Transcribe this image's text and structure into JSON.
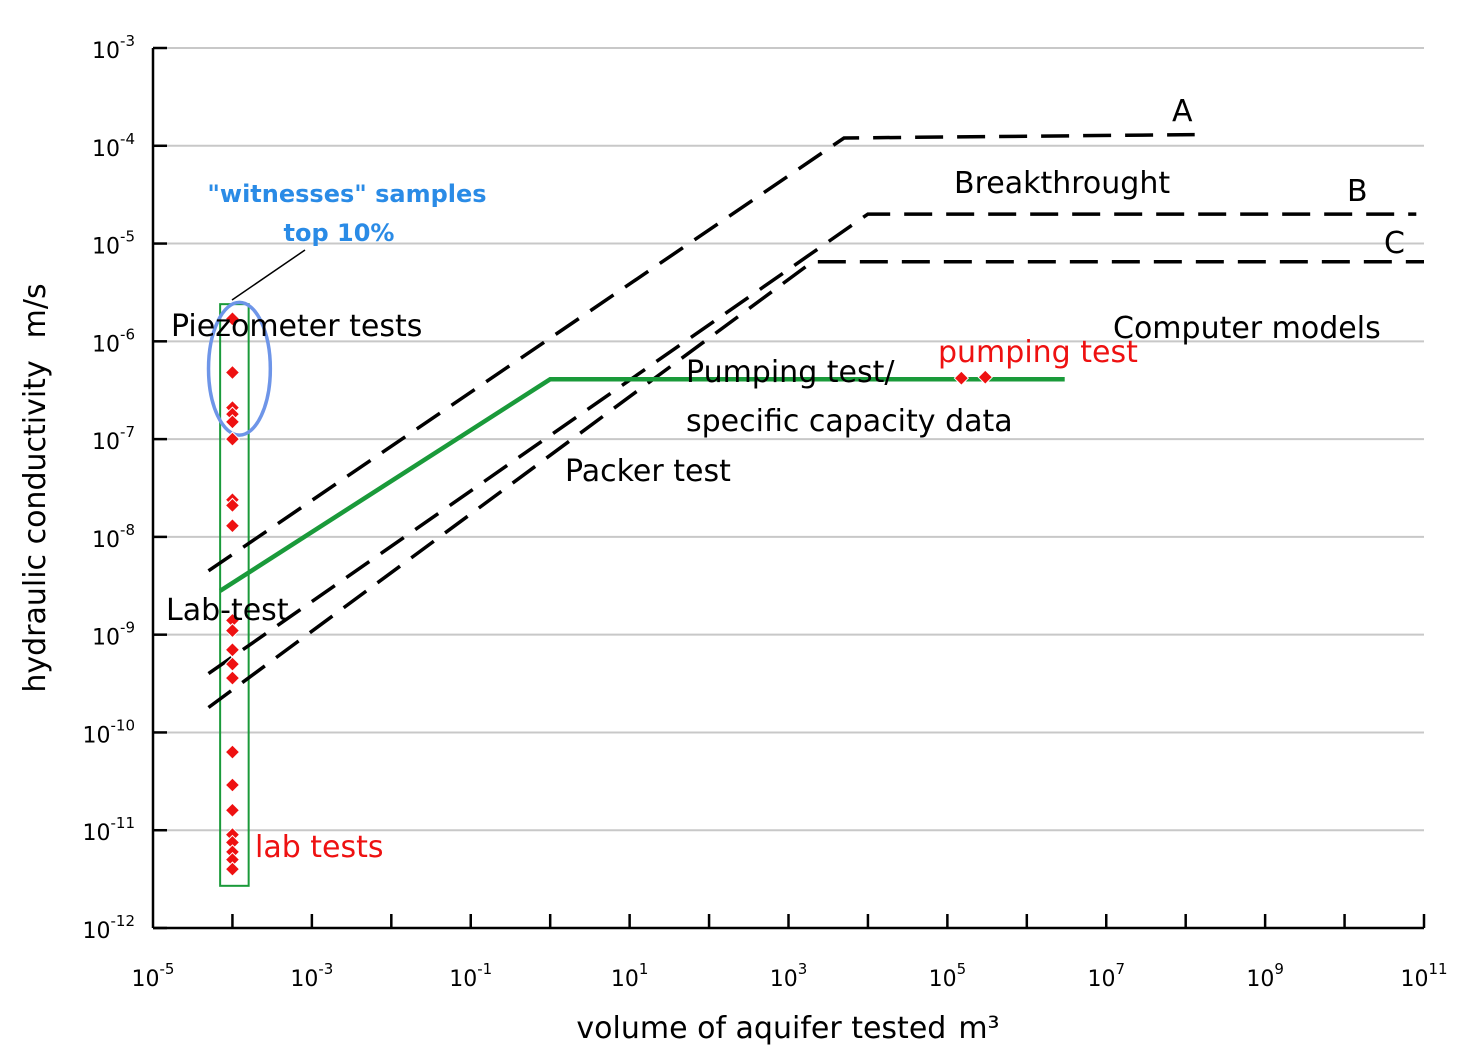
{
  "chart_data": {
    "type": "line",
    "xlabel": "volume of aquifer tested",
    "xlabel_unit": "m³",
    "ylabel": "hydraulic conductivity",
    "ylabel_unit": "m/s",
    "x_scale": "log",
    "y_scale": "log",
    "xlim": [
      1e-05,
      100000000000.0
    ],
    "ylim": [
      1e-12,
      0.001
    ],
    "grid": "horizontal",
    "x_ticks": [
      {
        "base": "10",
        "exp": "-5",
        "value": 1e-05
      },
      {
        "base": "10",
        "exp": "-3",
        "value": 0.001
      },
      {
        "base": "10",
        "exp": "-1",
        "value": 0.1
      },
      {
        "base": "10",
        "exp": "1",
        "value": 10.0
      },
      {
        "base": "10",
        "exp": "3",
        "value": 1000.0
      },
      {
        "base": "10",
        "exp": "5",
        "value": 100000.0
      },
      {
        "base": "10",
        "exp": "7",
        "value": 10000000.0
      },
      {
        "base": "10",
        "exp": "9",
        "value": 1000000000.0
      },
      {
        "base": "10",
        "exp": "11",
        "value": 100000000000.0
      }
    ],
    "y_ticks": [
      {
        "base": "10",
        "exp": "-3",
        "value": 0.001
      },
      {
        "base": "10",
        "exp": "-4",
        "value": 0.0001
      },
      {
        "base": "10",
        "exp": "-5",
        "value": 1e-05
      },
      {
        "base": "10",
        "exp": "-6",
        "value": 1e-06
      },
      {
        "base": "10",
        "exp": "-7",
        "value": 1e-07
      },
      {
        "base": "10",
        "exp": "-8",
        "value": 1e-08
      },
      {
        "base": "10",
        "exp": "-9",
        "value": 1e-09
      },
      {
        "base": "10",
        "exp": "-10",
        "value": 1e-10
      },
      {
        "base": "10",
        "exp": "-11",
        "value": 1e-11
      },
      {
        "base": "10",
        "exp": "-12",
        "value": 1e-12
      }
    ],
    "dashed_lines": [
      {
        "name": "A",
        "points": [
          [
            5e-05,
            4.5e-09
          ],
          [
            5000.0,
            0.00012
          ],
          [
            130000000.0,
            0.00013
          ]
        ]
      },
      {
        "name": "B",
        "points": [
          [
            5e-05,
            4e-10
          ],
          [
            10000.0,
            2e-05
          ],
          [
            80000000000.0,
            2e-05
          ]
        ]
      },
      {
        "name": "C",
        "points": [
          [
            5e-05,
            1.8e-10
          ],
          [
            2000.0,
            6.5e-06
          ],
          [
            100000000000.0,
            6.5e-06
          ]
        ]
      }
    ],
    "green_line": {
      "points": [
        [
          7e-05,
          2.8e-09
        ],
        [
          1,
          4.1e-07
        ],
        [
          3000000.0,
          4.1e-07
        ]
      ]
    },
    "lab_box": {
      "x": [
        7e-05,
        0.00016
      ],
      "y": [
        2.7e-12,
        2.4e-06
      ]
    },
    "witness_ellipse": {
      "x": [
        5e-05,
        0.0003
      ],
      "y": [
        1.1e-07,
        2.5e-06
      ]
    },
    "points_lab": {
      "x": 0.0001,
      "y": [
        1.7e-06,
        4.8e-07,
        2.1e-07,
        1.8e-07,
        1.5e-07,
        1e-07,
        2.4e-08,
        2.1e-08,
        1.3e-08,
        1.4e-09,
        1.1e-09,
        7e-10,
        5e-10,
        3.6e-10,
        6.3e-11,
        2.9e-11,
        1.6e-11,
        9e-12,
        7.5e-12,
        6e-12,
        5e-12,
        4e-12
      ]
    },
    "points_pumping": [
      [
        150000.0,
        4.2e-07
      ],
      [
        300000.0,
        4.3e-07
      ]
    ],
    "annotations": [
      {
        "id": "a",
        "text": "A"
      },
      {
        "id": "b",
        "text": "B"
      },
      {
        "id": "c",
        "text": "C"
      },
      {
        "id": "breakthrough",
        "text": "Breakthrought"
      },
      {
        "id": "computer-models",
        "text": "Computer models"
      },
      {
        "id": "piezometer-tests",
        "text": "Piezometer tests"
      },
      {
        "id": "pumping-test-red",
        "text": "pumping test"
      },
      {
        "id": "pumping-test-line1",
        "text": "Pumping test/"
      },
      {
        "id": "pumping-test-line2",
        "text": "specific capacity data"
      },
      {
        "id": "packer-test",
        "text": "Packer test"
      },
      {
        "id": "lab-test",
        "text": "Lab-test"
      },
      {
        "id": "lab-tests-red",
        "text": "lab tests"
      },
      {
        "id": "witness-line1",
        "text": "\"witnesses\" samples"
      },
      {
        "id": "witness-line2",
        "text": "top 10%"
      }
    ]
  },
  "colors": {
    "green": "#1a9a3a",
    "red": "#ee1111",
    "blue_text": "#2a8be6",
    "ellipse": "#6e95e8",
    "grid": "#c8c8c8",
    "dashed": "#000000"
  }
}
